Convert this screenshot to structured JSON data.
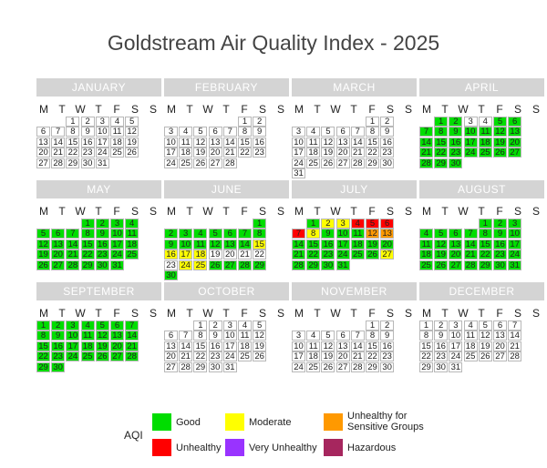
{
  "title": "Goldstream Air Quality Index - 2025",
  "weekday_labels": [
    "M",
    "T",
    "W",
    "T",
    "F",
    "S",
    "S"
  ],
  "colors": {
    "good": "#00dd00",
    "moderate": "#ffff00",
    "usg": "#ff9900",
    "unhealthy": "#ff0000",
    "very_unhealthy": "#9933ff",
    "hazardous": "#a6265e",
    "none": "#ffffff"
  },
  "legend": {
    "title": "AQI",
    "items": [
      {
        "key": "good",
        "label": "Good"
      },
      {
        "key": "moderate",
        "label": "Moderate"
      },
      {
        "key": "usg",
        "label": "Unhealthy for Sensitive Groups"
      },
      {
        "key": "unhealthy",
        "label": "Unhealthy"
      },
      {
        "key": "very_unhealthy",
        "label": "Very Unhealthy"
      },
      {
        "key": "hazardous",
        "label": "Hazardous"
      }
    ]
  },
  "chart_data": {
    "type": "heatmap",
    "year": 2025,
    "months": [
      {
        "name": "JANUARY",
        "first_weekday": 2,
        "days": 31,
        "aqi": {}
      },
      {
        "name": "FEBRUARY",
        "first_weekday": 5,
        "days": 28,
        "aqi": {}
      },
      {
        "name": "MARCH",
        "first_weekday": 5,
        "days": 31,
        "aqi": {}
      },
      {
        "name": "APRIL",
        "first_weekday": 1,
        "days": 30,
        "aqi": {
          "1": "good",
          "2": "good",
          "5": "good",
          "6": "good",
          "7": "good",
          "8": "good",
          "9": "good",
          "10": "good",
          "11": "good",
          "12": "good",
          "13": "good",
          "14": "good",
          "15": "good",
          "16": "good",
          "17": "good",
          "18": "good",
          "19": "good",
          "20": "good",
          "21": "good",
          "22": "good",
          "23": "good",
          "24": "good",
          "25": "good",
          "26": "good",
          "27": "good",
          "28": "good",
          "29": "good",
          "30": "good"
        }
      },
      {
        "name": "MAY",
        "first_weekday": 3,
        "days": 31,
        "aqi": "all-good"
      },
      {
        "name": "JUNE",
        "first_weekday": 6,
        "days": 30,
        "aqi": {
          "1": "good",
          "2": "good",
          "3": "good",
          "4": "good",
          "5": "good",
          "6": "good",
          "7": "good",
          "8": "good",
          "9": "good",
          "10": "good",
          "11": "good",
          "12": "good",
          "13": "good",
          "14": "good",
          "15": "moderate",
          "16": "moderate",
          "17": "moderate",
          "18": "moderate",
          "24": "moderate",
          "25": "moderate",
          "26": "good",
          "27": "good",
          "28": "good",
          "29": "good",
          "30": "good"
        }
      },
      {
        "name": "JULY",
        "first_weekday": 1,
        "days": 31,
        "aqi": {
          "1": "good",
          "2": "moderate",
          "3": "moderate",
          "4": "unhealthy",
          "5": "unhealthy",
          "6": "unhealthy",
          "7": "unhealthy",
          "8": "moderate",
          "9": "good",
          "10": "good",
          "11": "good",
          "12": "usg",
          "13": "usg",
          "14": "good",
          "15": "good",
          "16": "good",
          "17": "good",
          "18": "good",
          "19": "good",
          "20": "good",
          "21": "good",
          "22": "good",
          "23": "good",
          "24": "good",
          "25": "good",
          "26": "good",
          "27": "moderate",
          "28": "good",
          "29": "good",
          "30": "good",
          "31": "good"
        }
      },
      {
        "name": "AUGUST",
        "first_weekday": 4,
        "days": 31,
        "aqi": "all-good"
      },
      {
        "name": "SEPTEMBER",
        "first_weekday": 0,
        "days": 30,
        "aqi": "all-good"
      },
      {
        "name": "OCTOBER",
        "first_weekday": 2,
        "days": 31,
        "aqi": {}
      },
      {
        "name": "NOVEMBER",
        "first_weekday": 5,
        "days": 30,
        "aqi": {}
      },
      {
        "name": "DECEMBER",
        "first_weekday": 0,
        "days": 31,
        "aqi": {}
      }
    ]
  }
}
